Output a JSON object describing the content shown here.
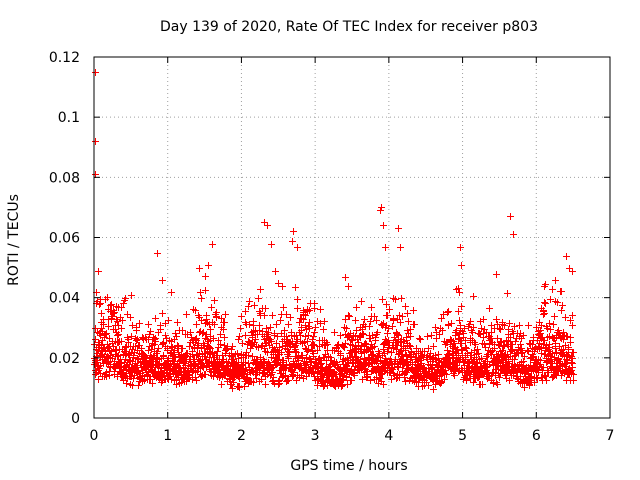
{
  "chart_data": {
    "type": "scatter",
    "title": "Day 139 of 2020, Rate Of TEC Index for receiver p803",
    "xlabel": "GPS time / hours",
    "ylabel": "ROTI / TECUs",
    "xlim": [
      0,
      7
    ],
    "ylim": [
      0,
      0.12
    ],
    "xticks": [
      "0",
      "1",
      "2",
      "3",
      "4",
      "5",
      "6",
      "7"
    ],
    "yticks": [
      "0",
      "0.02",
      "0.04",
      "0.06",
      "0.08",
      "0.1",
      "0.12"
    ],
    "grid": true,
    "marker": "plus",
    "color": "#ff0000",
    "x_range_data": [
      0.0,
      6.5
    ],
    "typical_y_range": [
      0.005,
      0.045
    ],
    "series": [
      {
        "name": "ROTI",
        "x": [
          0.02,
          0.02,
          0.02,
          0.03,
          0.05,
          0.07,
          0.3,
          0.42,
          0.5,
          0.85,
          0.92,
          1.05,
          1.42,
          1.55,
          1.6,
          2.0,
          2.1,
          2.25,
          2.3,
          2.35,
          2.4,
          2.45,
          2.5,
          2.55,
          2.68,
          2.7,
          2.75,
          3.4,
          3.45,
          3.88,
          3.9,
          3.92,
          3.95,
          4.12,
          4.15,
          4.96,
          4.98,
          5.45,
          5.65,
          5.68,
          6.1,
          6.25,
          6.4,
          6.45,
          6.48
        ],
        "y": [
          0.115,
          0.092,
          0.081,
          0.042,
          0.049,
          0.038,
          0.033,
          0.04,
          0.041,
          0.055,
          0.046,
          0.042,
          0.05,
          0.051,
          0.058,
          0.034,
          0.039,
          0.043,
          0.065,
          0.064,
          0.058,
          0.049,
          0.045,
          0.044,
          0.059,
          0.062,
          0.057,
          0.047,
          0.044,
          0.069,
          0.07,
          0.064,
          0.057,
          0.063,
          0.057,
          0.057,
          0.051,
          0.048,
          0.067,
          0.061,
          0.044,
          0.046,
          0.054,
          0.05,
          0.049
        ]
      }
    ]
  }
}
